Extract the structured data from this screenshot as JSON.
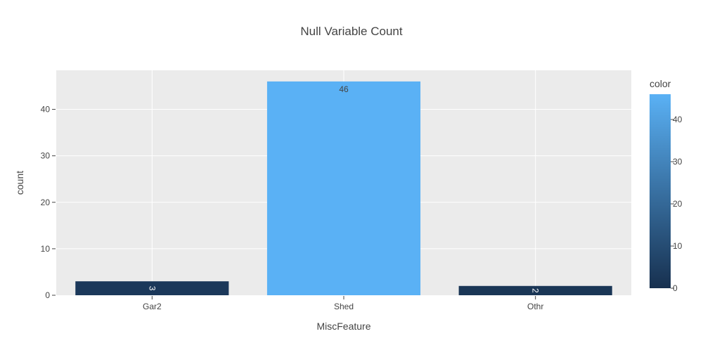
{
  "chart_data": {
    "type": "bar",
    "title": "Null Variable Count",
    "xlabel": "MiscFeature",
    "ylabel": "count",
    "categories": [
      "Gar2",
      "Shed",
      "Othr"
    ],
    "values": [
      3,
      46,
      2
    ],
    "data_labels": [
      "3",
      "46",
      "2"
    ],
    "ylim": [
      0,
      48.4
    ],
    "yticks": [
      0,
      10,
      20,
      30,
      40
    ],
    "grid": true,
    "plot_background": "#ebebeb",
    "colorbar": {
      "title": "color",
      "range": [
        0,
        46
      ],
      "ticks": [
        0,
        10,
        20,
        30,
        40
      ],
      "color_low": "#17304f",
      "color_high": "#5ab1f5"
    }
  }
}
